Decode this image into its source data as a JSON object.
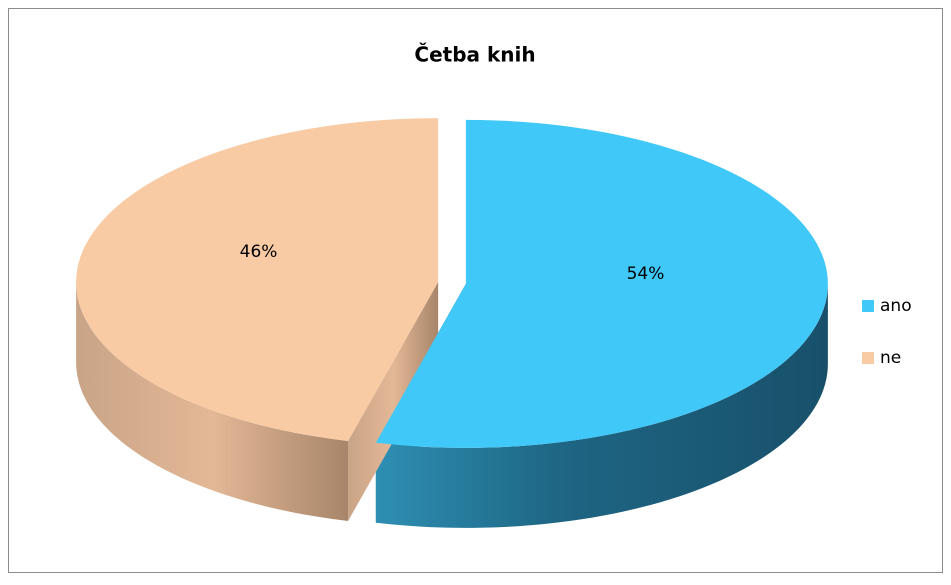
{
  "chart_data": {
    "type": "pie",
    "title": "Četba knih",
    "categories": [
      "ano",
      "ne"
    ],
    "values": [
      54,
      46
    ],
    "value_labels": [
      "54%",
      "46%"
    ],
    "colors": [
      "#40c8f8",
      "#f8cba4"
    ],
    "legend": "right"
  }
}
